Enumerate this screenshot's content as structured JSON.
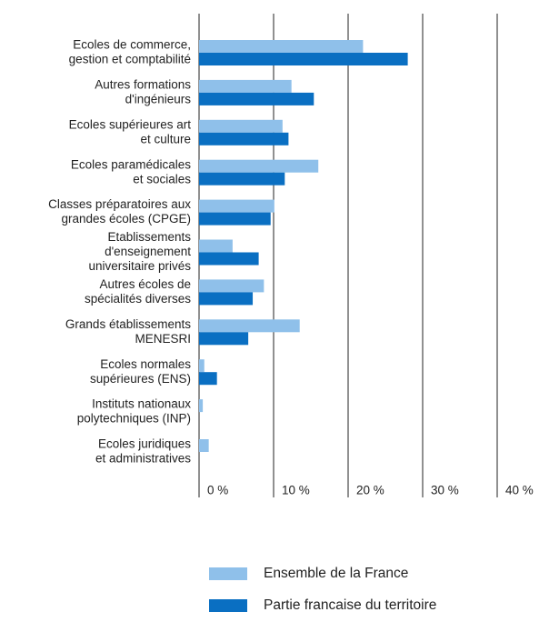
{
  "chart_data": {
    "type": "bar",
    "orientation": "horizontal",
    "categories": [
      [
        "Ecoles de commerce,",
        "gestion et comptabilité"
      ],
      [
        "Autres formations",
        "d'ingénieurs"
      ],
      [
        "Ecoles supérieures art",
        "et culture"
      ],
      [
        "Ecoles paramédicales",
        "et sociales"
      ],
      [
        "Classes préparatoires aux",
        "grandes écoles (CPGE)"
      ],
      [
        "Etablissements",
        "d'enseignement",
        "universitaire privés"
      ],
      [
        "Autres écoles de",
        "spécialités diverses"
      ],
      [
        "Grands établissements",
        "MENESRI"
      ],
      [
        "Ecoles normales",
        "supérieures (ENS)"
      ],
      [
        "Instituts nationaux",
        "polytechniques (INP)"
      ],
      [
        "Ecoles juridiques",
        "et administratives"
      ]
    ],
    "series": [
      {
        "name": "Ensemble de la France",
        "color": "#8fc0ea",
        "values": [
          22,
          12.4,
          11.2,
          16,
          10.1,
          4.5,
          8.7,
          13.5,
          0.7,
          0.5,
          1.3
        ]
      },
      {
        "name": "Partie francaise du territoire",
        "color": "#0a6fc2",
        "values": [
          28,
          15.4,
          12,
          11.5,
          9.6,
          8,
          7.2,
          6.6,
          2.4,
          0,
          0
        ]
      }
    ],
    "xlim": [
      0,
      40
    ],
    "xticks": [
      {
        "value": 0,
        "label": "0 %"
      },
      {
        "value": 10,
        "label": "10 %"
      },
      {
        "value": 20,
        "label": "20 %"
      },
      {
        "value": 30,
        "label": "30 %"
      },
      {
        "value": 40,
        "label": "40 %"
      }
    ],
    "grid": true,
    "legend": "bottom"
  }
}
